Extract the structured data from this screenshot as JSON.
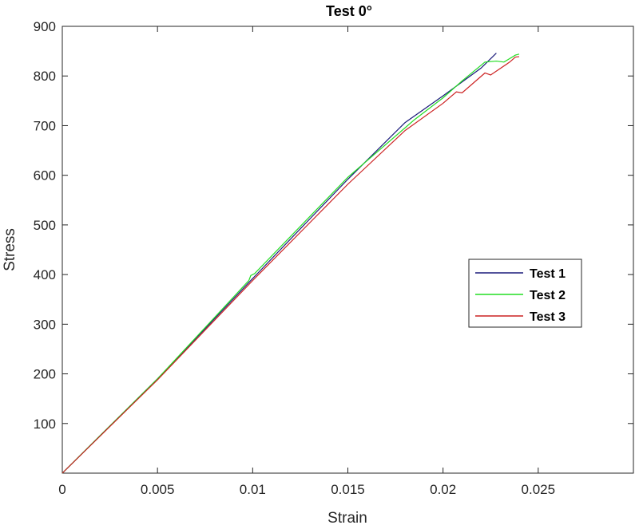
{
  "chart_data": {
    "type": "line",
    "title": "Test 0°",
    "xlabel": "Strain",
    "ylabel": "Stress",
    "xlim": [
      0,
      0.03
    ],
    "ylim": [
      0,
      900
    ],
    "xticks": [
      0,
      0.005,
      0.01,
      0.015,
      0.02,
      0.025
    ],
    "xtick_labels": [
      "0",
      "0.005",
      "0.01",
      "0.015",
      "0.02",
      "0.025"
    ],
    "yticks": [
      100,
      200,
      300,
      400,
      500,
      600,
      700,
      800,
      900
    ],
    "ytick_labels": [
      "100",
      "200",
      "300",
      "400",
      "500",
      "600",
      "700",
      "800",
      "900"
    ],
    "grid": false,
    "legend_position": "center-right",
    "series": [
      {
        "name": "Test 1",
        "color": "#1a1a7a",
        "points": [
          [
            0,
            0
          ],
          [
            0.005,
            190
          ],
          [
            0.01,
            392
          ],
          [
            0.0102,
            400
          ],
          [
            0.015,
            592
          ],
          [
            0.018,
            706
          ],
          [
            0.02,
            760
          ],
          [
            0.022,
            816
          ],
          [
            0.0228,
            846
          ]
        ]
      },
      {
        "name": "Test 2",
        "color": "#22dd22",
        "points": [
          [
            0,
            0
          ],
          [
            0.005,
            190
          ],
          [
            0.0098,
            388
          ],
          [
            0.0099,
            398
          ],
          [
            0.0101,
            402
          ],
          [
            0.015,
            596
          ],
          [
            0.0185,
            712
          ],
          [
            0.02,
            756
          ],
          [
            0.021,
            790
          ],
          [
            0.0222,
            828
          ],
          [
            0.0228,
            830
          ],
          [
            0.0232,
            828
          ],
          [
            0.0238,
            842
          ],
          [
            0.024,
            844
          ]
        ]
      },
      {
        "name": "Test 3",
        "color": "#cc2222",
        "points": [
          [
            0,
            0
          ],
          [
            0.005,
            188
          ],
          [
            0.01,
            388
          ],
          [
            0.015,
            582
          ],
          [
            0.018,
            690
          ],
          [
            0.02,
            745
          ],
          [
            0.0207,
            768
          ],
          [
            0.021,
            766
          ],
          [
            0.0222,
            806
          ],
          [
            0.0225,
            802
          ],
          [
            0.0235,
            828
          ],
          [
            0.0238,
            838
          ],
          [
            0.024,
            839
          ]
        ]
      }
    ]
  }
}
